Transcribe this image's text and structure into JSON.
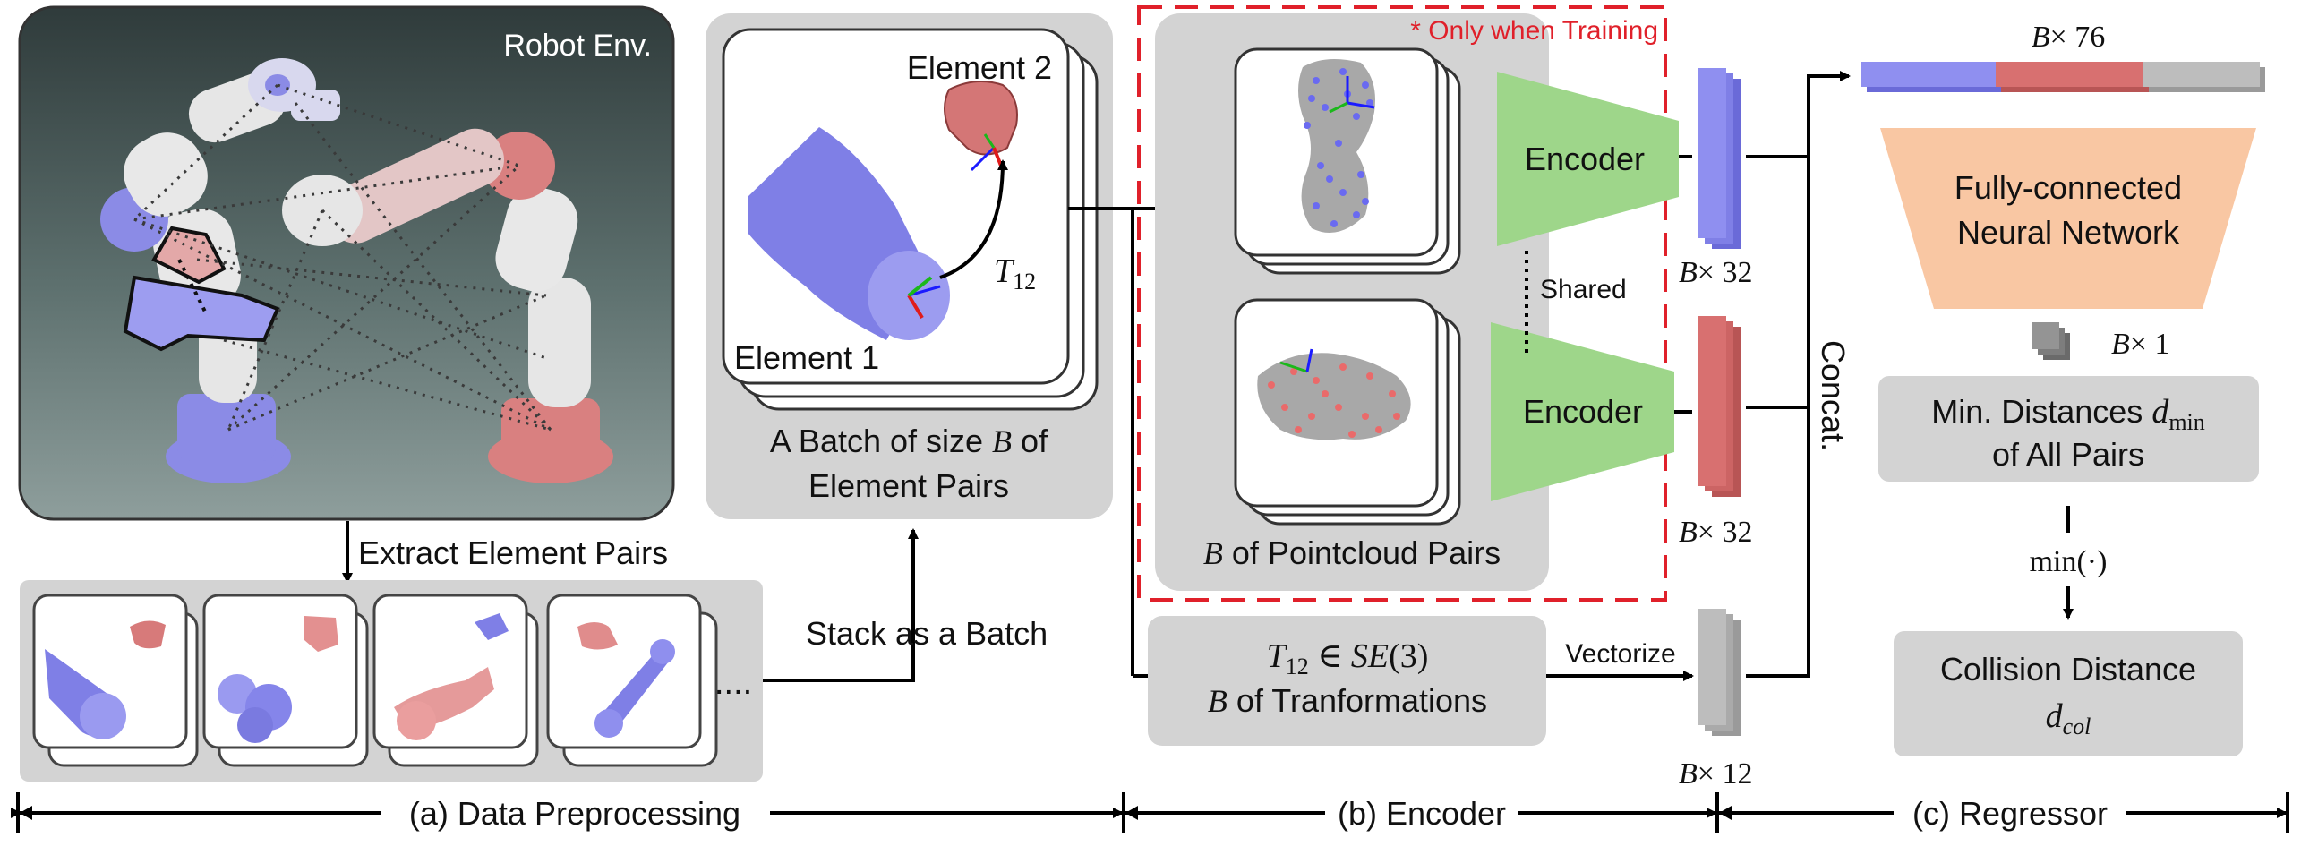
{
  "robot_panel": {
    "title": "Robot Env."
  },
  "preprocess": {
    "extract_label": "Extract Element Pairs",
    "stack_label": "Stack as a Batch",
    "ellipsis": "....",
    "element2_label": "Element 2",
    "element1_label": "Element 1",
    "transform_symbol": "T",
    "transform_sub": "12",
    "batch_caption_line1_pre": "A Batch of size ",
    "batch_caption_line1_var": "B",
    "batch_caption_line1_post": " of",
    "batch_caption_line2": "Element Pairs"
  },
  "encoder_block": {
    "training_note": "* Only when Training",
    "encoder_label": "Encoder",
    "shared_label": "Shared",
    "pointcloud_caption_var": "B",
    "pointcloud_caption_text": " of Pointcloud Pairs",
    "transform_line1_T": "T",
    "transform_line1_sub": "12",
    "transform_line1_rest": " ∈ ",
    "transform_line1_group": "SE",
    "transform_line1_arg": "(3)",
    "transform_line2_var": "B",
    "transform_line2_text": " of Tranformations",
    "vectorize_label": "Vectorize",
    "dim_32_a": "× 32",
    "dim_32_b": "× 32",
    "dim_12": "× 12",
    "dim_var": "B",
    "concat_label": "Concat."
  },
  "regressor": {
    "dim_76": "× 76",
    "dim_1": "× 1",
    "dim_var": "B",
    "fc_line1": "Fully-connected",
    "fc_line2": "Neural Network",
    "min_line1_pre": "Min. Distances ",
    "min_line1_var": "d",
    "min_line1_sub": "min",
    "min_line2": "of All Pairs",
    "min_op": "min(·)",
    "collision_line1": "Collision Distance",
    "collision_var": "d",
    "collision_sub": "col"
  },
  "stages": {
    "a": "(a) Data Preprocessing",
    "b": "(b) Encoder",
    "c": "(c) Regressor"
  },
  "colors": {
    "blue": "#7f7ff0",
    "red": "#d76c6c",
    "gray_box": "#d3d3d3",
    "encoder_green": "#9ed68a",
    "fc_orange": "#f9c7a3",
    "dashed_red": "#e0202a"
  }
}
